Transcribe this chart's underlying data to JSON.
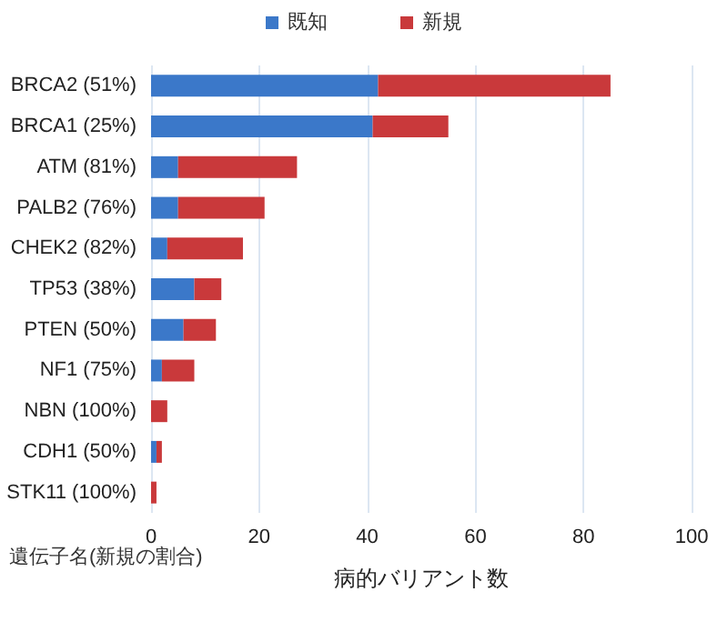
{
  "chart_data": {
    "type": "bar",
    "orientation": "horizontal",
    "stacked": true,
    "ylabel": "遺伝子名(新規の割合)",
    "xlabel": "病的バリアント数",
    "categories": [
      "BRCA2 (51%)",
      "BRCA1 (25%)",
      "ATM (81%)",
      "PALB2 (76%)",
      "CHEK2 (82%)",
      "TP53 (38%)",
      "PTEN (50%)",
      "NF1 (75%)",
      "NBN (100%)",
      "CDH1 (50%)",
      "STK11 (100%)"
    ],
    "series": [
      {
        "name": "既知",
        "color": "#3b78c9",
        "values": [
          42,
          41,
          5,
          5,
          3,
          8,
          6,
          2,
          0,
          1,
          0
        ]
      },
      {
        "name": "新規",
        "color": "#c9393b",
        "values": [
          43,
          14,
          22,
          16,
          14,
          5,
          6,
          6,
          3,
          1,
          1
        ]
      }
    ],
    "xlim": [
      0,
      100
    ],
    "xticks": [
      0,
      20,
      40,
      60,
      80,
      100
    ],
    "grid": "x",
    "legend": "top"
  }
}
